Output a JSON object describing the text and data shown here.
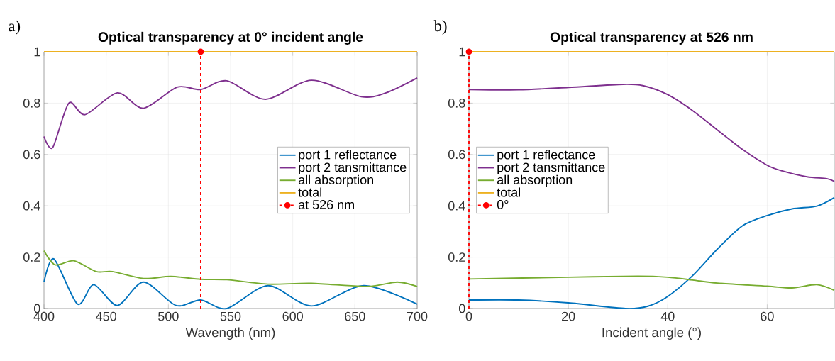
{
  "chart_data": [
    {
      "type": "line",
      "title": "Optical transparency at 0° incident angle",
      "xlabel": "Wavength (nm)",
      "annotations": [
        "a)"
      ],
      "xlim": [
        400,
        700
      ],
      "xticks": [
        400,
        450,
        500,
        550,
        600,
        650,
        700
      ],
      "ylim": [
        0,
        1
      ],
      "yticks": [
        0,
        0.2,
        0.4,
        0.6,
        0.8,
        1
      ],
      "grid": true,
      "legend": "right",
      "series": [
        {
          "name": "port 1 reflectance",
          "color": "#0072bd",
          "x": [
            400,
            408,
            427,
            440,
            459,
            480,
            506,
            526,
            547,
            580,
            615,
            657,
            700
          ],
          "values": [
            0.103,
            0.193,
            0.017,
            0.093,
            0.012,
            0.103,
            0.012,
            0.033,
            0.0,
            0.089,
            0.01,
            0.089,
            0.017
          ]
        },
        {
          "name": "port 2 tansmittance",
          "color": "#7e2f8e",
          "x": [
            400,
            407,
            420,
            433,
            459,
            480,
            507,
            526,
            547,
            578,
            615,
            655,
            675,
            700
          ],
          "values": [
            0.67,
            0.627,
            0.8,
            0.755,
            0.84,
            0.78,
            0.862,
            0.853,
            0.887,
            0.815,
            0.889,
            0.825,
            0.84,
            0.898
          ]
        },
        {
          "name": "all absorption",
          "color": "#77ac30",
          "x": [
            400,
            409,
            424,
            442,
            455,
            480,
            502,
            526,
            547,
            580,
            615,
            660,
            684,
            700
          ],
          "values": [
            0.225,
            0.17,
            0.186,
            0.144,
            0.144,
            0.117,
            0.125,
            0.114,
            0.112,
            0.095,
            0.098,
            0.086,
            0.103,
            0.086
          ]
        },
        {
          "name": "total",
          "color": "#edb120",
          "x": [
            400,
            700
          ],
          "values": [
            1,
            1
          ]
        },
        {
          "name": "at 526 nm",
          "color": "#ff0000",
          "line_style": "dashed",
          "marker": "circle",
          "x": [
            526,
            526
          ],
          "values": [
            0,
            1
          ]
        }
      ]
    },
    {
      "type": "line",
      "title": "Optical transparency at 526 nm",
      "xlabel": "Incident angle (°)",
      "annotations": [
        "b)"
      ],
      "xlim": [
        0,
        73.5
      ],
      "xticks": [
        0,
        20,
        40,
        60
      ],
      "ylim": [
        0,
        1
      ],
      "yticks": [
        0,
        0.2,
        0.4,
        0.6,
        0.8,
        1
      ],
      "grid": true,
      "legend": "left",
      "series": [
        {
          "name": "port 1 reflectance",
          "color": "#0072bd",
          "x": [
            0,
            10,
            20,
            31.5,
            36,
            40,
            45,
            50,
            55,
            60,
            65,
            70,
            73.5
          ],
          "values": [
            0.033,
            0.033,
            0.022,
            0.0,
            0.009,
            0.047,
            0.128,
            0.232,
            0.322,
            0.362,
            0.388,
            0.399,
            0.432
          ]
        },
        {
          "name": "port 2 tansmittance",
          "color": "#7e2f8e",
          "x": [
            0,
            10,
            20,
            31,
            35,
            40,
            45,
            50,
            55,
            60,
            63,
            68,
            72,
            73.5
          ],
          "values": [
            0.853,
            0.852,
            0.861,
            0.873,
            0.868,
            0.833,
            0.771,
            0.695,
            0.62,
            0.558,
            0.536,
            0.513,
            0.506,
            0.495
          ]
        },
        {
          "name": "all absorption",
          "color": "#77ac30",
          "x": [
            0,
            20,
            34,
            40,
            45,
            50,
            60,
            65,
            70,
            73.5
          ],
          "values": [
            0.115,
            0.122,
            0.126,
            0.122,
            0.111,
            0.099,
            0.087,
            0.08,
            0.093,
            0.071
          ]
        },
        {
          "name": "total",
          "color": "#edb120",
          "x": [
            0,
            73.5
          ],
          "values": [
            1,
            1
          ]
        },
        {
          "name": "0°",
          "color": "#ff0000",
          "line_style": "dashed",
          "marker": "circle",
          "x": [
            0,
            0
          ],
          "values": [
            0,
            1
          ]
        }
      ]
    }
  ]
}
